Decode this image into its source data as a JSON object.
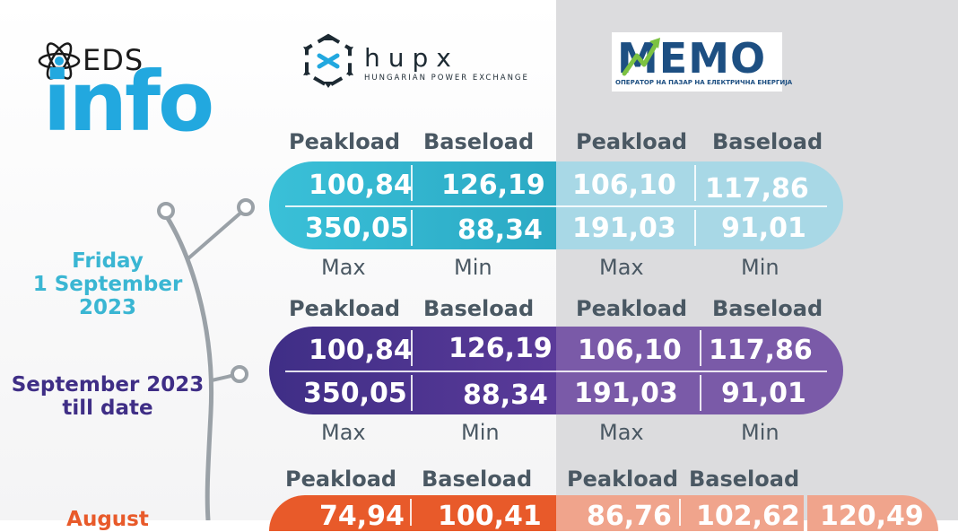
{
  "logos": {
    "eds": {
      "small": "EDS",
      "big": "info"
    },
    "hupx": {
      "name": "hupx",
      "subtitle": "HUNGARIAN POWER EXCHANGE"
    },
    "memo": {
      "name": "MEMO",
      "subtitle": "ОПЕРАТОР НА ПАЗАР НА ЕЛЕКТРИЧНА ЕНЕРГИЈА"
    }
  },
  "labels": {
    "peakload": "Peakload",
    "baseload": "Baseload",
    "max": "Max",
    "min": "Min"
  },
  "sections": [
    {
      "date_lines": [
        "Friday",
        "1 September",
        "2023"
      ],
      "color": "#3ab6d3",
      "hupx": {
        "peakload": "100,84",
        "baseload": "126,19",
        "max": "350,05",
        "min": "88,34"
      },
      "memo": {
        "peakload": "106,10",
        "baseload": "117,86",
        "max": "191,03",
        "min": "91,01"
      }
    },
    {
      "date_lines": [
        "September 2023",
        "till date"
      ],
      "color": "#3f2e86",
      "hupx": {
        "peakload": "100,84",
        "baseload": "126,19",
        "max": "350,05",
        "min": "88,34"
      },
      "memo": {
        "peakload": "106,10",
        "baseload": "117,86",
        "max": "191,03",
        "min": "91,01"
      }
    },
    {
      "date_lines": [
        "August"
      ],
      "color": "#e85a2a",
      "hupx": {
        "peakload": "74,94",
        "baseload": "100,41"
      },
      "memo": {
        "peakload": "86,76",
        "baseload": "102,62",
        "extra": "120,49"
      }
    }
  ]
}
